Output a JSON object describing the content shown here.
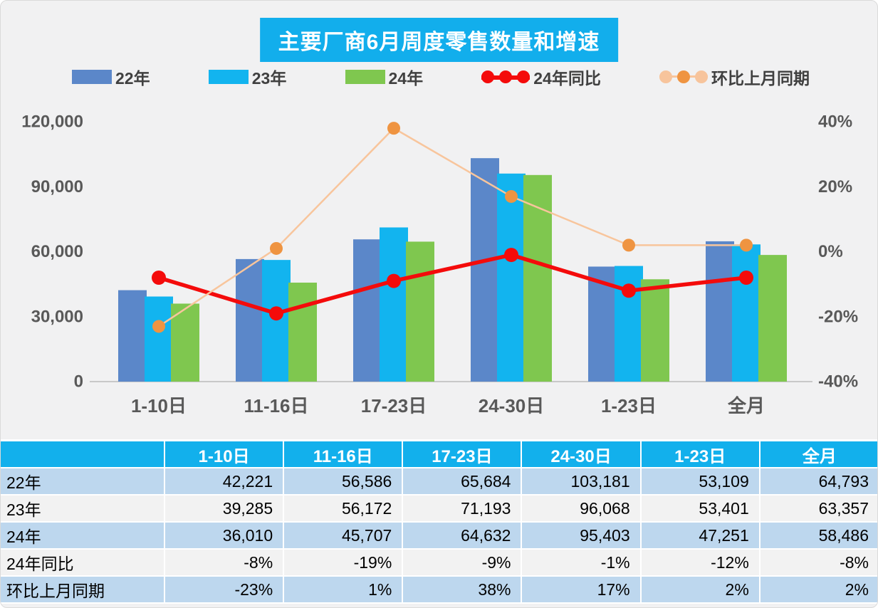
{
  "page": {
    "background": "#F1F1F2"
  },
  "chart": {
    "title": "主要厂商6月周度零售数量和增速",
    "title_bg": "#12AEEC",
    "title_color": "#FFFFFF"
  },
  "legend": {
    "items": [
      {
        "key": "y22",
        "label": "22年",
        "type": "bar",
        "color": "#5B87C9"
      },
      {
        "key": "y23",
        "label": "23年",
        "type": "bar",
        "color": "#12B4EF"
      },
      {
        "key": "y24",
        "label": "24年",
        "type": "bar",
        "color": "#7FC74F"
      },
      {
        "key": "yoy",
        "label": "24年同比",
        "type": "line",
        "line_color": "#F40B0B",
        "dots": [
          "#F40B0B",
          "#F40B0B",
          "#F40B0B"
        ]
      },
      {
        "key": "mom",
        "label": "环比上月同期",
        "type": "line",
        "line_color": "#F8C59C",
        "dots": [
          "#F7C49C",
          "#EF9441",
          "#F7C49C"
        ]
      }
    ]
  },
  "chart_data": {
    "type": "combo",
    "title": "主要厂商6月周度零售数量和增速",
    "categories": [
      "1-10日",
      "11-16日",
      "17-23日",
      "24-30日",
      "1-23日",
      "全月"
    ],
    "bar_series": [
      {
        "name": "22年",
        "color": "#5B87C9",
        "values": [
          42221,
          56586,
          65684,
          103181,
          53109,
          64793
        ]
      },
      {
        "name": "23年",
        "color": "#12B4EF",
        "values": [
          39285,
          56172,
          71193,
          96068,
          53401,
          63357
        ]
      },
      {
        "name": "24年",
        "color": "#7FC74F",
        "values": [
          36010,
          45707,
          64632,
          95403,
          47251,
          58486
        ]
      }
    ],
    "line_series": [
      {
        "name": "24年同比",
        "color": "#F40B0B",
        "marker_color": "#F40B0B",
        "axis": "right",
        "values_pct": [
          -8,
          -19,
          -9,
          -1,
          -12,
          -8
        ]
      },
      {
        "name": "环比上月同期",
        "color": "#F8C59C",
        "marker_color": "#EF9441",
        "axis": "right",
        "values_pct": [
          -23,
          1,
          38,
          17,
          2,
          2
        ]
      }
    ],
    "left_axis": {
      "min": 0,
      "max": 120000,
      "ticks": [
        "0",
        "30,000",
        "60,000",
        "90,000",
        "120,000"
      ]
    },
    "right_axis": {
      "min": -40,
      "max": 40,
      "ticks": [
        "-40%",
        "-20%",
        "0%",
        "20%",
        "40%"
      ]
    },
    "grid": false,
    "legend_position": "top"
  },
  "table": {
    "header": [
      "",
      "1-10日",
      "11-16日",
      "17-23日",
      "24-30日",
      "1-23日",
      "全月"
    ],
    "rows": [
      {
        "label": "22年",
        "cells": [
          "42,221",
          "56,586",
          "65,684",
          "103,181",
          "53,109",
          "64,793"
        ],
        "shade": "blue"
      },
      {
        "label": "23年",
        "cells": [
          "39,285",
          "56,172",
          "71,193",
          "96,068",
          "53,401",
          "63,357"
        ],
        "shade": "plain"
      },
      {
        "label": "24年",
        "cells": [
          "36,010",
          "45,707",
          "64,632",
          "95,403",
          "47,251",
          "58,486"
        ],
        "shade": "blue"
      },
      {
        "label": "24年同比",
        "cells": [
          "-8%",
          "-19%",
          "-9%",
          "-1%",
          "-12%",
          "-8%"
        ],
        "shade": "plain"
      },
      {
        "label": "环比上月同期",
        "cells": [
          "-23%",
          "1%",
          "38%",
          "17%",
          "2%",
          "2%"
        ],
        "shade": "blue"
      }
    ],
    "colors": {
      "header_bg": "#12B0EC",
      "header_text": "#FFFFFF",
      "blue_row": "#BDD7EE",
      "plain_row": "#F2F2F2",
      "text": "#000000"
    }
  }
}
